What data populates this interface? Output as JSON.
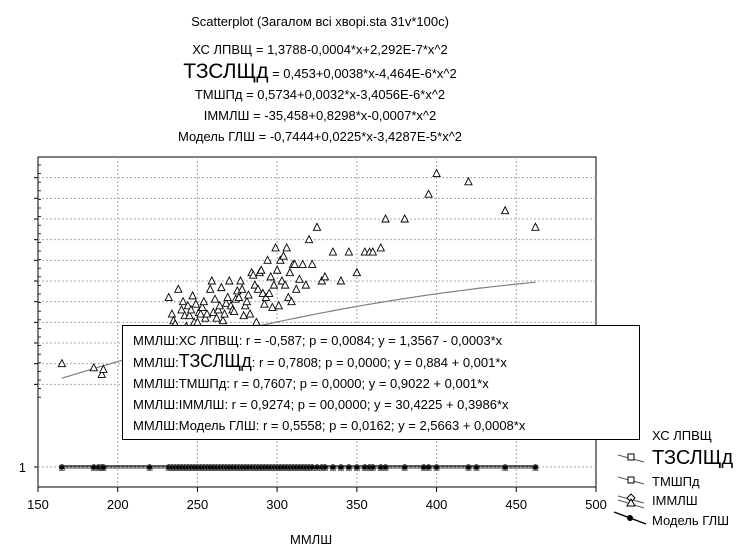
{
  "chart_data": {
    "type": "scatter",
    "title": "Scatterplot (Загалом всі хворі.sta 31v*100c)",
    "subtitle_lines": [
      "ХС ЛПВЩ = 1,3788-0,0004*x+2,292E-7*x^2",
      "ТЗСЛЩд = 0,453+0,0038*x-4,464E-6*x^2",
      "ТМШПд = 0,5734+0,0032*x-3,4056E-6*x^2",
      "ІММЛШ = -35,458+0,8298*x-0,0007*x^2",
      "Модель ГЛШ = -0,7444+0,0225*x-3,4287E-5*x^2"
    ],
    "subtitle_prefixes": [
      "ХС ЛПВЩ",
      "ТЗСЛЩд",
      "ТМШПд",
      "ІММЛШ",
      "Модель ГЛШ"
    ],
    "subtitle_rests": [
      " = 1,3788-0,0004*x+2,292E-7*x^2",
      " = 0,453+0,0038*x-4,464E-6*x^2",
      " = 0,5734+0,0032*x-3,4056E-6*x^2",
      " = -35,458+0,8298*x-0,0007*x^2",
      " = -0,7444+0,0225*x-3,4287E-5*x^2"
    ],
    "xlabel": "ММЛШ",
    "xlim": [
      150,
      500
    ],
    "x_ticks": [
      "150",
      "200",
      "250",
      "300",
      "350",
      "400",
      "450",
      "500"
    ],
    "y_ticks": [
      "1"
    ],
    "grid": true,
    "legend_placement": "bottom-right",
    "series": [
      {
        "name": "ХС ЛПВЩ",
        "marker": "square"
      },
      {
        "name": "ТЗСЛЩд",
        "marker": "square"
      },
      {
        "name": "ТМШПд",
        "marker": "diamond"
      },
      {
        "name": "ІММЛШ",
        "marker": "triangle",
        "x": [
          165,
          185,
          190,
          191,
          232,
          234,
          235,
          236,
          237,
          238,
          240,
          241,
          242,
          243,
          244,
          245,
          246,
          247,
          248,
          249,
          250,
          251,
          252,
          253,
          254,
          255,
          256,
          258,
          259,
          260,
          261,
          262,
          263,
          264,
          265,
          266,
          267,
          268,
          269,
          270,
          271,
          272,
          273,
          274,
          275,
          276,
          277,
          278,
          279,
          280,
          281,
          282,
          283,
          284,
          285,
          286,
          287,
          288,
          289,
          290,
          291,
          292,
          293,
          294,
          295,
          296,
          297,
          298,
          299,
          300,
          301,
          302,
          303,
          304,
          305,
          306,
          307,
          308,
          309,
          310,
          311,
          312,
          314,
          316,
          318,
          320,
          322,
          325,
          328,
          330,
          335,
          340,
          345,
          350,
          355,
          358,
          360,
          365,
          368,
          380,
          395,
          400,
          420,
          443,
          462
        ],
        "y": [
          100,
          95,
          87,
          93,
          180,
          160,
          152,
          148,
          140,
          190,
          165,
          175,
          158,
          145,
          170,
          158,
          165,
          182,
          150,
          172,
          150,
          162,
          160,
          168,
          175,
          155,
          160,
          190,
          200,
          162,
          178,
          155,
          165,
          170,
          192,
          152,
          160,
          173,
          180,
          200,
          170,
          165,
          163,
          178,
          188,
          180,
          200,
          190,
          158,
          170,
          175,
          183,
          160,
          210,
          207,
          195,
          150,
          190,
          210,
          213,
          185,
          172,
          180,
          225,
          185,
          205,
          168,
          195,
          240,
          213,
          170,
          225,
          200,
          230,
          195,
          240,
          180,
          210,
          175,
          220,
          220,
          190,
          202,
          220,
          195,
          250,
          220,
          265,
          200,
          205,
          235,
          200,
          235,
          210,
          235,
          235,
          235,
          240,
          275,
          275,
          305,
          330,
          320,
          285,
          265
        ]
      },
      {
        "name": "Модель ГЛШ",
        "marker": "circle",
        "x": [
          165,
          185,
          188,
          190,
          191,
          220,
          232,
          234,
          236,
          238,
          240,
          242,
          244,
          246,
          248,
          250,
          252,
          254,
          256,
          258,
          260,
          262,
          264,
          266,
          268,
          270,
          272,
          274,
          276,
          278,
          280,
          282,
          284,
          286,
          288,
          290,
          292,
          294,
          296,
          298,
          300,
          302,
          304,
          306,
          308,
          310,
          312,
          314,
          316,
          318,
          320,
          322,
          325,
          328,
          330,
          335,
          340,
          345,
          350,
          355,
          358,
          360,
          365,
          368,
          380,
          392,
          395,
          400,
          420,
          425,
          443,
          462
        ],
        "y": [
          1,
          1,
          1,
          1,
          1,
          1,
          1,
          1,
          1,
          1,
          1,
          1,
          1,
          1,
          1,
          1,
          1,
          1,
          1,
          1,
          1,
          1,
          1,
          1,
          1,
          1,
          1,
          1,
          1,
          1,
          1,
          1,
          1,
          1,
          1,
          1,
          1,
          1,
          1,
          1,
          1,
          1,
          1,
          1,
          1,
          1,
          1,
          1,
          1,
          1,
          1,
          1,
          1,
          1,
          1,
          1,
          1,
          1,
          1,
          1,
          1,
          1,
          1,
          1,
          1,
          1,
          1,
          1,
          1,
          1,
          1,
          1
        ]
      }
    ],
    "fit_curve": {
      "series": "ІММЛШ",
      "a": -35.458,
      "b": 0.8298,
      "c": -0.0007
    }
  },
  "stats_box": {
    "rows": [
      {
        "prefix": "ММЛШ:",
        "name": "ХС ЛПВЩ",
        "rest": ":  r = -0,587;  p = 0,0084;  y = 1,3567 - 0,0003*x"
      },
      {
        "prefix": "ММЛШ:",
        "name": "ТЗСЛЩд",
        "rest": ":  r = 0,7808; p = 0,0000;  y = 0,884 + 0,001*x"
      },
      {
        "prefix": "ММЛШ:",
        "name": "ТМШПд",
        "rest": ":  r = 0,7607; p = 0,0000;  y = 0,9022 + 0,001*x"
      },
      {
        "prefix": "ММЛШ:",
        "name": "ІММЛШ",
        "rest": ":  r = 0,9274; p = 00,0000;  y = 30,4225 + 0,3986*x"
      },
      {
        "prefix": "ММЛШ:",
        "name": "Модель ГЛШ",
        "rest": ":  r = 0,5558; p = 0,0162;  y = 2,5663 + 0,0008*x"
      }
    ]
  },
  "legend": [
    "ХС ЛПВЩ",
    "ТЗСЛЩд",
    "ТМШПд",
    "ІММЛШ",
    "Модель ГЛШ"
  ],
  "colors": {
    "marker": "#000000",
    "fit_line": "#808080",
    "grid": "#a8a8a8",
    "background": "#ffffff"
  }
}
